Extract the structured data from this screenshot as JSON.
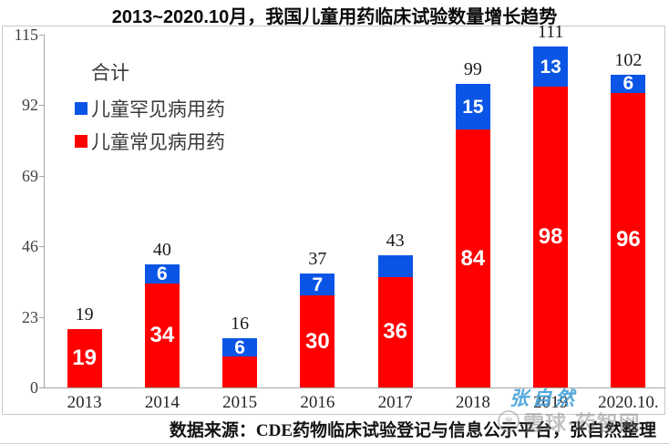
{
  "title": "2013~2020.10月，我国儿童用药临床试验数量增长趋势",
  "legend": {
    "total_label": "合计"
  },
  "footer": {
    "source_text": "数据来源：CDE药物临床试验登记与信息公示平台，张自然整理"
  },
  "watermarks": {
    "author": "张自然",
    "site": "雪球·药智网",
    "site_logo_icon": "snowball-icon"
  },
  "colors": {
    "common_series": "#fe0000",
    "rare_series": "#0a55e6",
    "author_watermark": "#42a0d8",
    "axis": "#a6a6a6",
    "frame": "#c9c9c9"
  },
  "chart_data": {
    "type": "bar",
    "stacked": true,
    "title": "2013~2020.10月，我国儿童用药临床试验数量增长趋势",
    "xlabel": "",
    "ylabel": "",
    "categories": [
      "2013",
      "2014",
      "2015",
      "2016",
      "2017",
      "2018",
      "2019",
      "2020.10."
    ],
    "series": [
      {
        "name": "儿童常见病用药",
        "color": "#fe0000",
        "values": [
          19,
          34,
          10,
          30,
          36,
          84,
          98,
          96
        ],
        "bar_labels": [
          "19",
          "34",
          "",
          "30",
          "36",
          "84",
          "98",
          "96"
        ]
      },
      {
        "name": "儿童罕见病用药",
        "color": "#0a55e6",
        "values": [
          0,
          6,
          6,
          7,
          7,
          15,
          13,
          6
        ],
        "bar_labels": [
          "",
          "6",
          "6",
          "7",
          "",
          "15",
          "13",
          "6"
        ]
      }
    ],
    "totals": [
      19,
      40,
      16,
      37,
      43,
      99,
      111,
      102
    ],
    "totals_label": "合计",
    "yticks": [
      0,
      23,
      46,
      69,
      92,
      115
    ],
    "ylim": [
      0,
      115
    ],
    "grid": false,
    "legend_position": "upper-left-inside"
  }
}
